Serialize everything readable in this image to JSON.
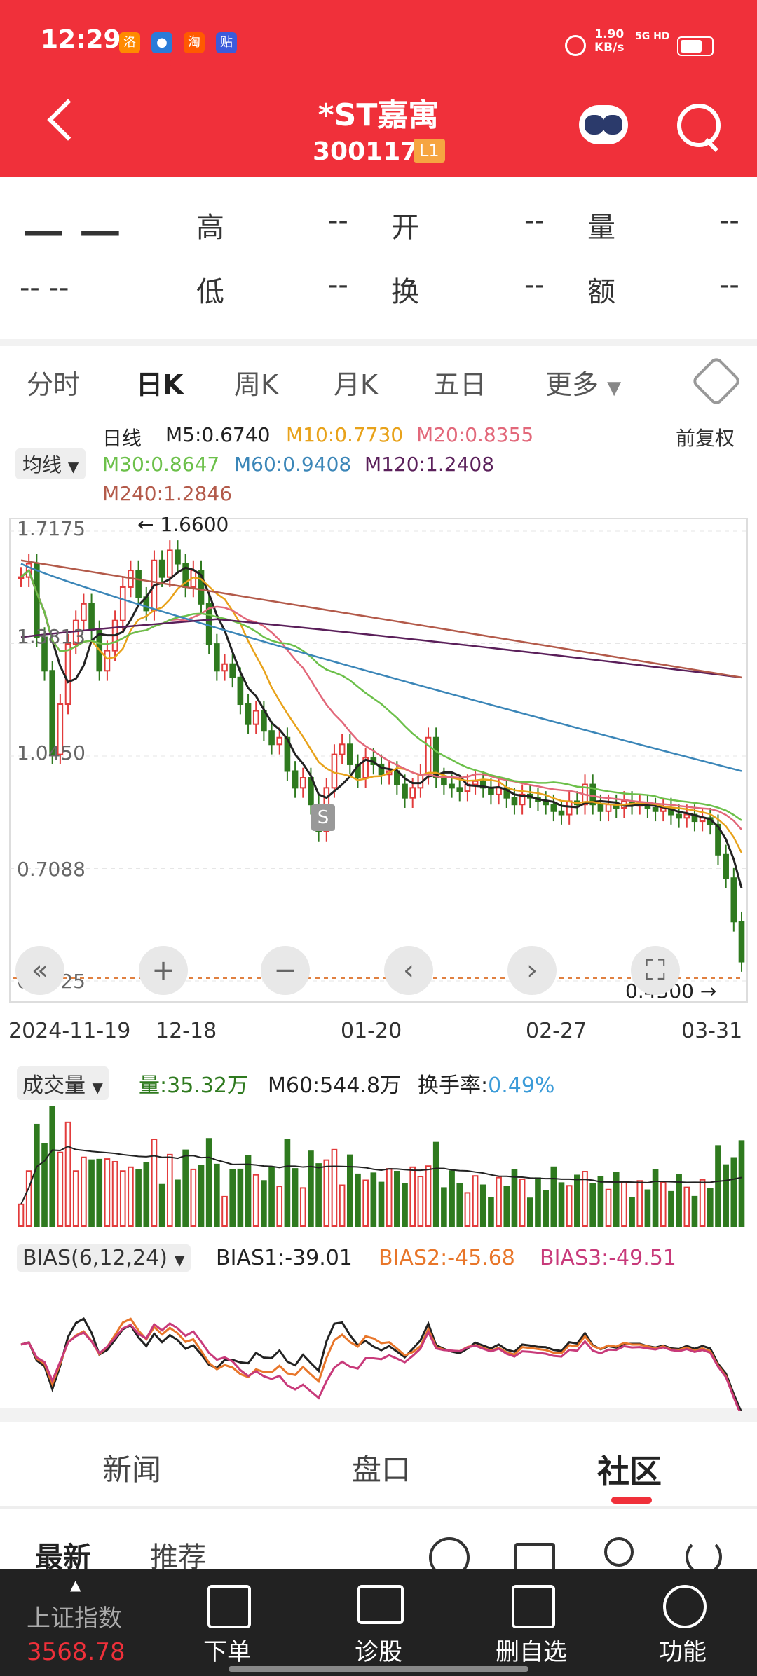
{
  "status": {
    "time": "12:29",
    "net_speed": "1.90",
    "net_unit": "KB/s",
    "signal": "5G HD"
  },
  "header": {
    "title": "*ST嘉寓",
    "code": "300117",
    "level": "L1"
  },
  "quote": {
    "price": "— —",
    "change": "-- --",
    "high_label": "高",
    "high": "--",
    "open_label": "开",
    "open": "--",
    "volume_label": "量",
    "volume": "--",
    "low_label": "低",
    "low": "--",
    "turnover_label": "换",
    "turnover": "--",
    "amount_label": "额",
    "amount": "--"
  },
  "tabs": [
    "分时",
    "日K",
    "周K",
    "月K",
    "五日",
    "更多"
  ],
  "ma_legend": {
    "selector": "均线",
    "series_label": "日线",
    "m5": "M5:0.6740",
    "m10": "M10:0.7730",
    "m20": "M20:0.8355",
    "m30": "M30:0.8647",
    "m60": "M60:0.9408",
    "m120": "M120:1.2408",
    "m240": "M240:1.2846",
    "adjust": "前复权"
  },
  "colors": {
    "m5": "#222222",
    "m10": "#e8a21a",
    "m20": "#e2687a",
    "m30": "#6cc04a",
    "m60": "#3b86b8",
    "m120": "#5a1f5a",
    "m240": "#b35a4a",
    "up": "#e23b3b",
    "down": "#2f7a1f",
    "accent": "#f0303a"
  },
  "price_axis": [
    "1.7175",
    "1.3813",
    "1.0450",
    "0.7088",
    "0.3725"
  ],
  "marks": {
    "high": "1.6600",
    "low": "0.4300",
    "signal": "S"
  },
  "date_axis": [
    "2024-11-19",
    "12-18",
    "01-20",
    "02-27",
    "03-31"
  ],
  "volume_legend": {
    "selector": "成交量",
    "vol": "量:35.32万",
    "m60": "M60:544.8万",
    "turnover_label": "换手率:",
    "turnover": "0.49%"
  },
  "bias_legend": {
    "selector": "BIAS(6,12,24)",
    "b1": "BIAS1:-39.01",
    "b2": "BIAS2:-45.68",
    "b3": "BIAS3:-49.51"
  },
  "panel_tabs": [
    "新闻",
    "盘口",
    "社区"
  ],
  "sub_tabs": [
    "最新",
    "推荐"
  ],
  "bottom": {
    "index_name": "上证指数",
    "index_value": "3568.78",
    "items": [
      "下单",
      "诊股",
      "删自选",
      "功能"
    ]
  },
  "chart_data": {
    "type": "candlestick",
    "ylim": [
      0.3725,
      1.7175
    ],
    "close": [
      1.58,
      1.62,
      1.4,
      1.3,
      1.05,
      1.2,
      1.38,
      1.45,
      1.5,
      1.42,
      1.3,
      1.36,
      1.45,
      1.55,
      1.6,
      1.52,
      1.48,
      1.63,
      1.58,
      1.66,
      1.62,
      1.55,
      1.6,
      1.5,
      1.38,
      1.3,
      1.32,
      1.28,
      1.2,
      1.14,
      1.18,
      1.12,
      1.08,
      1.1,
      1.0,
      0.95,
      0.98,
      0.9,
      0.82,
      0.95,
      1.05,
      1.08,
      1.02,
      0.98,
      1.04,
      1.02,
      0.99,
      1.0,
      0.96,
      0.92,
      0.95,
      0.99,
      1.1,
      0.98,
      0.96,
      0.95,
      0.94,
      0.96,
      0.97,
      0.95,
      0.93,
      0.95,
      0.92,
      0.9,
      0.93,
      0.92,
      0.91,
      0.9,
      0.88,
      0.87,
      0.91,
      0.9,
      0.96,
      0.9,
      0.88,
      0.9,
      0.89,
      0.91,
      0.9,
      0.9,
      0.89,
      0.88,
      0.89,
      0.87,
      0.86,
      0.87,
      0.85,
      0.86,
      0.84,
      0.75,
      0.68,
      0.55,
      0.43
    ]
  }
}
